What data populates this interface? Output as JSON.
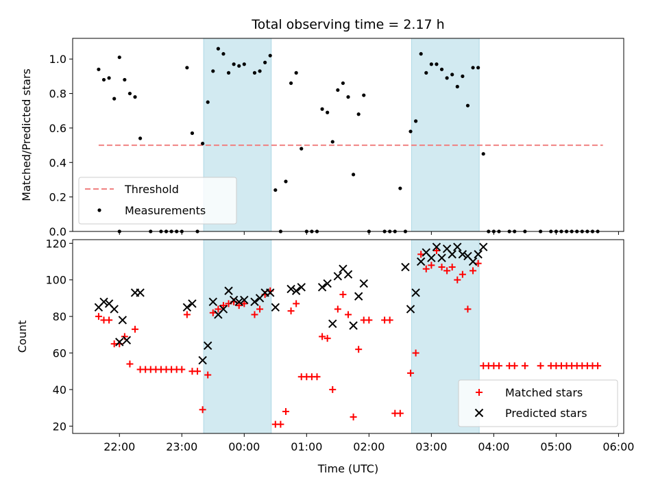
{
  "chart_data": [
    {
      "type": "scatter",
      "title": "Total observing time = 2.17 h",
      "ylabel": "Matched/Predicted stars",
      "xlabel": "",
      "xlim": [
        "21:15",
        "06:05"
      ],
      "ylim": [
        0,
        1.12
      ],
      "x_ticks_labeled": false,
      "y_ticks": [
        "0.0",
        "0.2",
        "0.4",
        "0.6",
        "0.8",
        "1.0"
      ],
      "shaded_intervals": [
        [
          "23:21",
          "00:26"
        ],
        [
          "02:41",
          "03:46"
        ]
      ],
      "shade_color": "#add8e6",
      "legend_position": "lower-left",
      "threshold": {
        "name": "Threshold",
        "y": 0.5,
        "x_range": [
          "21:40",
          "05:45"
        ],
        "color": "#f08080",
        "style": "dashed"
      },
      "series": [
        {
          "name": "Measurements",
          "marker": "dot",
          "color": "#000000",
          "points": [
            [
              "21:40",
              0.94
            ],
            [
              "21:45",
              0.88
            ],
            [
              "21:50",
              0.89
            ],
            [
              "21:55",
              0.77
            ],
            [
              "22:00",
              0.0
            ],
            [
              "22:00",
              1.01
            ],
            [
              "22:05",
              0.88
            ],
            [
              "22:10",
              0.8
            ],
            [
              "22:15",
              0.78
            ],
            [
              "22:20",
              0.54
            ],
            [
              "22:30",
              0.0
            ],
            [
              "22:40",
              0.0
            ],
            [
              "22:45",
              0.0
            ],
            [
              "22:50",
              0.0
            ],
            [
              "22:55",
              0.0
            ],
            [
              "23:00",
              0.0
            ],
            [
              "23:05",
              0.95
            ],
            [
              "23:10",
              0.57
            ],
            [
              "23:15",
              0.0
            ],
            [
              "23:20",
              0.51
            ],
            [
              "23:25",
              0.75
            ],
            [
              "23:30",
              0.93
            ],
            [
              "23:35",
              1.06
            ],
            [
              "23:40",
              1.03
            ],
            [
              "23:45",
              0.92
            ],
            [
              "23:50",
              0.97
            ],
            [
              "23:55",
              0.96
            ],
            [
              "00:00",
              0.97
            ],
            [
              "00:10",
              0.92
            ],
            [
              "00:15",
              0.93
            ],
            [
              "00:20",
              0.98
            ],
            [
              "00:25",
              1.02
            ],
            [
              "00:30",
              0.24
            ],
            [
              "00:35",
              0.0
            ],
            [
              "00:40",
              0.29
            ],
            [
              "00:45",
              0.86
            ],
            [
              "00:50",
              0.92
            ],
            [
              "00:55",
              0.48
            ],
            [
              "01:00",
              0.0
            ],
            [
              "01:05",
              0.0
            ],
            [
              "01:10",
              0.0
            ],
            [
              "01:15",
              0.71
            ],
            [
              "01:20",
              0.69
            ],
            [
              "01:25",
              0.52
            ],
            [
              "01:30",
              0.82
            ],
            [
              "01:35",
              0.86
            ],
            [
              "01:40",
              0.78
            ],
            [
              "01:45",
              0.33
            ],
            [
              "01:50",
              0.68
            ],
            [
              "01:55",
              0.79
            ],
            [
              "02:00",
              0.0
            ],
            [
              "02:15",
              0.0
            ],
            [
              "02:20",
              0.0
            ],
            [
              "02:25",
              0.0
            ],
            [
              "02:30",
              0.25
            ],
            [
              "02:35",
              0.0
            ],
            [
              "02:40",
              0.58
            ],
            [
              "02:45",
              0.64
            ],
            [
              "02:50",
              1.03
            ],
            [
              "02:55",
              0.92
            ],
            [
              "03:00",
              0.97
            ],
            [
              "03:05",
              0.97
            ],
            [
              "03:10",
              0.94
            ],
            [
              "03:15",
              0.89
            ],
            [
              "03:20",
              0.91
            ],
            [
              "03:25",
              0.84
            ],
            [
              "03:30",
              0.9
            ],
            [
              "03:35",
              0.73
            ],
            [
              "03:40",
              0.95
            ],
            [
              "03:45",
              0.95
            ],
            [
              "03:50",
              0.45
            ],
            [
              "03:55",
              0.0
            ],
            [
              "04:00",
              0.0
            ],
            [
              "04:05",
              0.0
            ],
            [
              "04:15",
              0.0
            ],
            [
              "04:20",
              0.0
            ],
            [
              "04:30",
              0.0
            ],
            [
              "04:45",
              0.0
            ],
            [
              "04:55",
              0.0
            ],
            [
              "05:00",
              0.0
            ],
            [
              "05:05",
              0.0
            ],
            [
              "05:10",
              0.0
            ],
            [
              "05:15",
              0.0
            ],
            [
              "05:20",
              0.0
            ],
            [
              "05:25",
              0.0
            ],
            [
              "05:30",
              0.0
            ],
            [
              "05:35",
              0.0
            ],
            [
              "05:40",
              0.0
            ]
          ]
        }
      ]
    },
    {
      "type": "scatter",
      "title": "",
      "ylabel": "Count",
      "xlabel": "Time (UTC)",
      "xlim": [
        "21:15",
        "06:05"
      ],
      "ylim": [
        16,
        122
      ],
      "x_ticks": [
        "22:00",
        "23:00",
        "00:00",
        "01:00",
        "02:00",
        "03:00",
        "04:00",
        "05:00",
        "06:00"
      ],
      "y_ticks": [
        "20",
        "40",
        "60",
        "80",
        "100",
        "120"
      ],
      "shaded_intervals": [
        [
          "23:21",
          "00:26"
        ],
        [
          "02:41",
          "03:46"
        ]
      ],
      "shade_color": "#add8e6",
      "legend_position": "lower-right",
      "series": [
        {
          "name": "Matched stars",
          "marker": "plus",
          "color": "#ff0000",
          "points": [
            [
              "21:40",
              80
            ],
            [
              "21:45",
              78
            ],
            [
              "21:50",
              78
            ],
            [
              "21:55",
              65
            ],
            [
              "22:00",
              65
            ],
            [
              "22:05",
              69
            ],
            [
              "22:10",
              54
            ],
            [
              "22:15",
              73
            ],
            [
              "22:20",
              51
            ],
            [
              "22:25",
              51
            ],
            [
              "22:30",
              51
            ],
            [
              "22:35",
              51
            ],
            [
              "22:40",
              51
            ],
            [
              "22:45",
              51
            ],
            [
              "22:50",
              51
            ],
            [
              "22:55",
              51
            ],
            [
              "23:00",
              51
            ],
            [
              "23:05",
              81
            ],
            [
              "23:10",
              50
            ],
            [
              "23:15",
              50
            ],
            [
              "23:20",
              29
            ],
            [
              "23:25",
              48
            ],
            [
              "23:30",
              82
            ],
            [
              "23:35",
              84
            ],
            [
              "23:40",
              86
            ],
            [
              "23:45",
              87
            ],
            [
              "23:50",
              88
            ],
            [
              "23:55",
              86
            ],
            [
              "00:00",
              87
            ],
            [
              "00:10",
              81
            ],
            [
              "00:15",
              84
            ],
            [
              "00:20",
              92
            ],
            [
              "00:25",
              94
            ],
            [
              "00:30",
              21
            ],
            [
              "00:35",
              21
            ],
            [
              "00:40",
              28
            ],
            [
              "00:45",
              83
            ],
            [
              "00:50",
              87
            ],
            [
              "00:55",
              47
            ],
            [
              "01:00",
              47
            ],
            [
              "01:05",
              47
            ],
            [
              "01:10",
              47
            ],
            [
              "01:15",
              69
            ],
            [
              "01:20",
              68
            ],
            [
              "01:25",
              40
            ],
            [
              "01:30",
              84
            ],
            [
              "01:35",
              92
            ],
            [
              "01:40",
              81
            ],
            [
              "01:45",
              25
            ],
            [
              "01:50",
              62
            ],
            [
              "01:55",
              78
            ],
            [
              "02:00",
              78
            ],
            [
              "02:15",
              78
            ],
            [
              "02:20",
              78
            ],
            [
              "02:25",
              27
            ],
            [
              "02:30",
              27
            ],
            [
              "02:40",
              49
            ],
            [
              "02:45",
              60
            ],
            [
              "02:50",
              114
            ],
            [
              "02:55",
              106
            ],
            [
              "03:00",
              108
            ],
            [
              "03:05",
              116
            ],
            [
              "03:10",
              107
            ],
            [
              "03:15",
              105
            ],
            [
              "03:20",
              107
            ],
            [
              "03:25",
              100
            ],
            [
              "03:30",
              103
            ],
            [
              "03:35",
              84
            ],
            [
              "03:40",
              105
            ],
            [
              "03:45",
              109
            ],
            [
              "03:50",
              53
            ],
            [
              "03:55",
              53
            ],
            [
              "04:00",
              53
            ],
            [
              "04:05",
              53
            ],
            [
              "04:15",
              53
            ],
            [
              "04:20",
              53
            ],
            [
              "04:30",
              53
            ],
            [
              "04:45",
              53
            ],
            [
              "04:55",
              53
            ],
            [
              "05:00",
              53
            ],
            [
              "05:05",
              53
            ],
            [
              "05:10",
              53
            ],
            [
              "05:15",
              53
            ],
            [
              "05:20",
              53
            ],
            [
              "05:25",
              53
            ],
            [
              "05:30",
              53
            ],
            [
              "05:35",
              53
            ],
            [
              "05:40",
              53
            ]
          ]
        },
        {
          "name": "Predicted stars",
          "marker": "x",
          "color": "#000000",
          "points": [
            [
              "21:40",
              85
            ],
            [
              "21:45",
              88
            ],
            [
              "21:50",
              87
            ],
            [
              "21:55",
              84
            ],
            [
              "22:00",
              66
            ],
            [
              "22:03",
              78
            ],
            [
              "22:07",
              67
            ],
            [
              "22:15",
              93
            ],
            [
              "22:20",
              93
            ],
            [
              "23:05",
              85
            ],
            [
              "23:10",
              87
            ],
            [
              "23:20",
              56
            ],
            [
              "23:25",
              64
            ],
            [
              "23:30",
              88
            ],
            [
              "23:35",
              81
            ],
            [
              "23:40",
              84
            ],
            [
              "23:45",
              94
            ],
            [
              "23:50",
              89
            ],
            [
              "23:55",
              88
            ],
            [
              "00:00",
              89
            ],
            [
              "00:10",
              88
            ],
            [
              "00:15",
              90
            ],
            [
              "00:20",
              93
            ],
            [
              "00:25",
              93
            ],
            [
              "00:30",
              85
            ],
            [
              "00:45",
              95
            ],
            [
              "00:50",
              94
            ],
            [
              "00:55",
              96
            ],
            [
              "01:15",
              96
            ],
            [
              "01:20",
              98
            ],
            [
              "01:25",
              76
            ],
            [
              "01:30",
              102
            ],
            [
              "01:35",
              106
            ],
            [
              "01:40",
              103
            ],
            [
              "01:45",
              75
            ],
            [
              "01:50",
              91
            ],
            [
              "01:55",
              98
            ],
            [
              "02:35",
              107
            ],
            [
              "02:40",
              84
            ],
            [
              "02:45",
              93
            ],
            [
              "02:50",
              110
            ],
            [
              "02:55",
              115
            ],
            [
              "03:00",
              112
            ],
            [
              "03:05",
              118
            ],
            [
              "03:10",
              112
            ],
            [
              "03:15",
              117
            ],
            [
              "03:20",
              114
            ],
            [
              "03:25",
              118
            ],
            [
              "03:30",
              114
            ],
            [
              "03:35",
              113
            ],
            [
              "03:40",
              110
            ],
            [
              "03:45",
              114
            ],
            [
              "03:50",
              118
            ]
          ]
        }
      ]
    }
  ]
}
